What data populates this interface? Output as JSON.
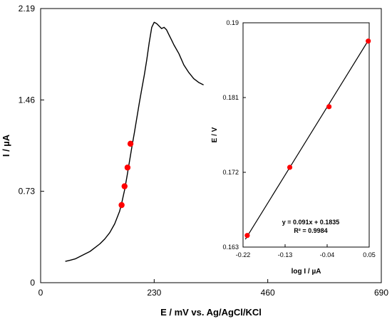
{
  "chart_data": [
    {
      "type": "line",
      "xlabel": "E / mV vs. Ag/AgCl/KCl",
      "ylabel": "I / µA",
      "xlim": [
        0,
        690
      ],
      "ylim": [
        0,
        2.19
      ],
      "x_ticks": [
        "0",
        "230",
        "460",
        "690"
      ],
      "y_ticks": [
        "0",
        "0.73",
        "1.46",
        "2.19"
      ],
      "grid": false,
      "series": [
        {
          "style": "line",
          "color": "#000000",
          "x": [
            50,
            60,
            70,
            80,
            90,
            100,
            110,
            120,
            130,
            140,
            150,
            160,
            165,
            170,
            175,
            180,
            185,
            190,
            195,
            200,
            205,
            210,
            215,
            220,
            225,
            230,
            235,
            240,
            245,
            250,
            255,
            260,
            265,
            270,
            280,
            290,
            300,
            310,
            320,
            330
          ],
          "y": [
            0.17,
            0.18,
            0.19,
            0.21,
            0.23,
            0.25,
            0.28,
            0.31,
            0.35,
            0.4,
            0.47,
            0.57,
            0.65,
            0.74,
            0.85,
            0.97,
            1.09,
            1.2,
            1.32,
            1.44,
            1.55,
            1.66,
            1.78,
            1.92,
            2.04,
            2.08,
            2.07,
            2.05,
            2.03,
            2.04,
            2.02,
            1.98,
            1.94,
            1.9,
            1.83,
            1.74,
            1.68,
            1.63,
            1.6,
            1.58
          ]
        },
        {
          "style": "scatter",
          "color": "#ff0000",
          "x": [
            164,
            170,
            176,
            182
          ],
          "y": [
            0.62,
            0.77,
            0.92,
            1.11
          ]
        }
      ]
    },
    {
      "type": "scatter",
      "xlabel": "log I / µA",
      "ylabel": "E / V",
      "xlim": [
        -0.22,
        0.05
      ],
      "ylim": [
        0.163,
        0.19
      ],
      "x_ticks": [
        "-0.22",
        "-0.13",
        "-0.04",
        "0.05"
      ],
      "y_ticks": [
        "0.163",
        "0.172",
        "0.181",
        "0.19"
      ],
      "grid": false,
      "series": [
        {
          "style": "scatter",
          "color": "#ff0000",
          "x": [
            -0.211,
            -0.12,
            -0.036,
            0.048
          ],
          "y": [
            0.1644,
            0.1726,
            0.1799,
            0.1878
          ]
        }
      ],
      "fit_line": {
        "x": [
          -0.215,
          0.05
        ],
        "y": [
          0.16394,
          0.18805
        ],
        "color": "#000000"
      },
      "annotations": [
        "y = 0.091x + 0.1835",
        "R² = 0.9984"
      ]
    }
  ]
}
